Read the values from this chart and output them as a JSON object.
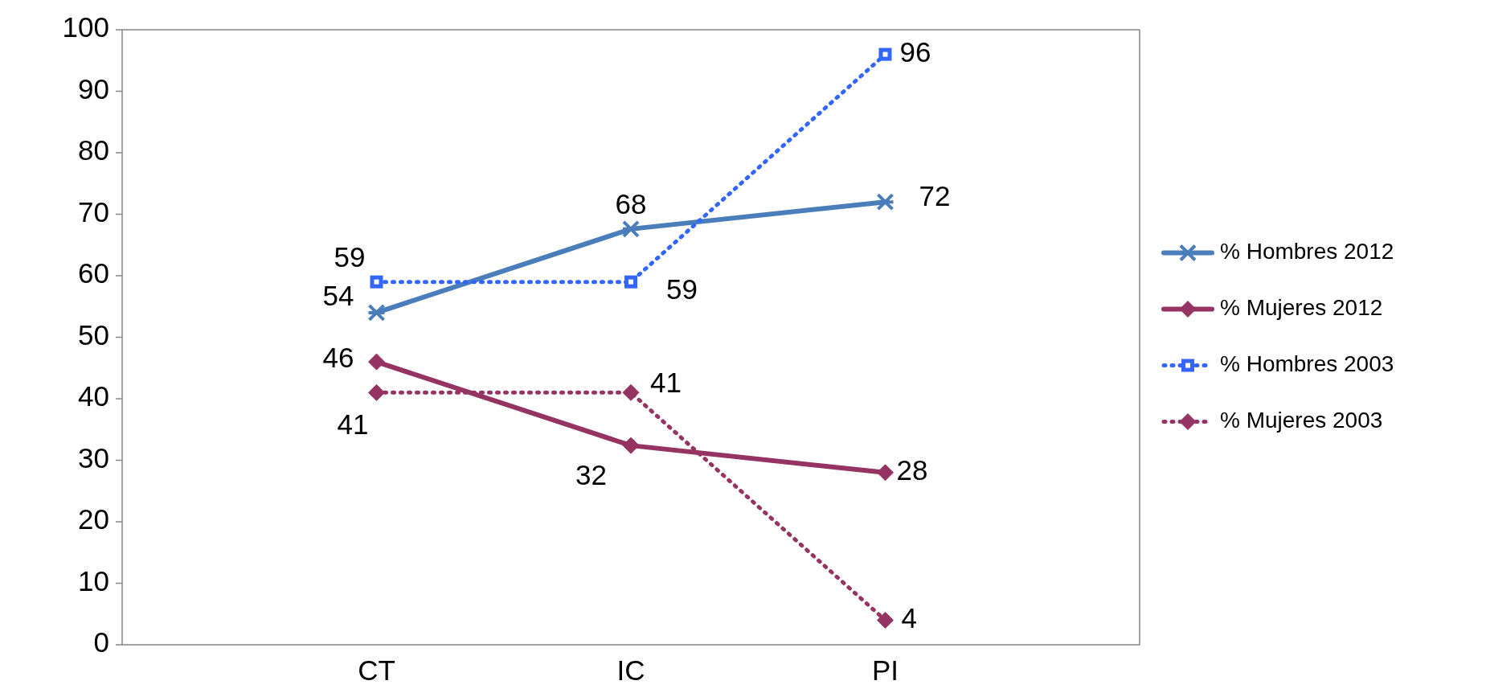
{
  "chart_data": {
    "type": "line",
    "categories": [
      "CT",
      "IC",
      "PI"
    ],
    "ylim": [
      0,
      100
    ],
    "yticks": [
      0,
      10,
      20,
      30,
      40,
      50,
      60,
      70,
      80,
      90,
      100
    ],
    "grid": false,
    "legend": "right",
    "series": [
      {
        "name": "% Hombres 2012",
        "color": "#4a7ebb",
        "marker": "cross",
        "line_style": "solid",
        "values": [
          54,
          67.6,
          72
        ],
        "value_labels": [
          "54",
          "68",
          "72"
        ]
      },
      {
        "name": "% Mujeres 2012",
        "color": "#953462",
        "marker": "diamond",
        "line_style": "solid",
        "values": [
          46,
          32.4,
          28
        ],
        "value_labels": [
          "46",
          "32",
          "28"
        ]
      },
      {
        "name": "% Hombres 2003",
        "color": "#3366ff",
        "marker": "square",
        "line_style": "dotted",
        "values": [
          59,
          59,
          96
        ],
        "value_labels": [
          "59",
          "59",
          "96"
        ]
      },
      {
        "name": "% Mujeres 2003",
        "color": "#953462",
        "marker": "diamond",
        "line_style": "dotted",
        "values": [
          41,
          41,
          4
        ],
        "value_labels": [
          "41",
          "41",
          "4"
        ]
      }
    ]
  }
}
